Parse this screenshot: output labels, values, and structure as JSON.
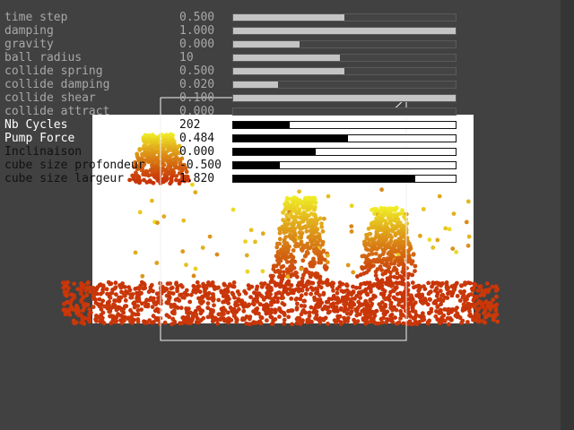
{
  "parameters": [
    {
      "id": "time-step",
      "label": "time step",
      "value": "0.500",
      "fraction": 0.5,
      "active": false
    },
    {
      "id": "damping",
      "label": "damping",
      "value": "1.000",
      "fraction": 1.0,
      "active": false
    },
    {
      "id": "gravity",
      "label": "gravity",
      "value": "0.000",
      "fraction": 0.3,
      "active": false
    },
    {
      "id": "ball-radius",
      "label": "ball radius",
      "value": "10",
      "fraction": 0.48,
      "active": false
    },
    {
      "id": "collide-spring",
      "label": "collide spring",
      "value": "0.500",
      "fraction": 0.5,
      "active": false
    },
    {
      "id": "collide-damping",
      "label": "collide damping",
      "value": "0.020",
      "fraction": 0.2,
      "active": false
    },
    {
      "id": "collide-shear",
      "label": "collide shear",
      "value": "0.100",
      "fraction": 1.0,
      "active": false
    },
    {
      "id": "collide-attract",
      "label": "collide attract",
      "value": "0.000",
      "fraction": 0.0,
      "active": false
    },
    {
      "id": "nb-cycles",
      "label": "Nb Cycles",
      "value": "202",
      "fraction": 0.253,
      "active": true
    },
    {
      "id": "pump-force",
      "label": "Pump Force",
      "value": "0.484",
      "fraction": 0.516,
      "active": true
    },
    {
      "id": "inclinaison",
      "label": "Inclinaison",
      "value": "0.000",
      "fraction": 0.37,
      "active": true
    },
    {
      "id": "cube-size-profondeur",
      "label": "cube size profondeur",
      "value": "-0.500",
      "fraction": 0.21,
      "active": true
    },
    {
      "id": "cube-size-largeur",
      "label": "cube size largeur",
      "value": "1.820",
      "fraction": 0.82,
      "active": true
    }
  ],
  "colors": {
    "background": "#414141",
    "floor": "#ffffff",
    "particle_low": "#c83208",
    "particle_high": "#f0f030"
  }
}
